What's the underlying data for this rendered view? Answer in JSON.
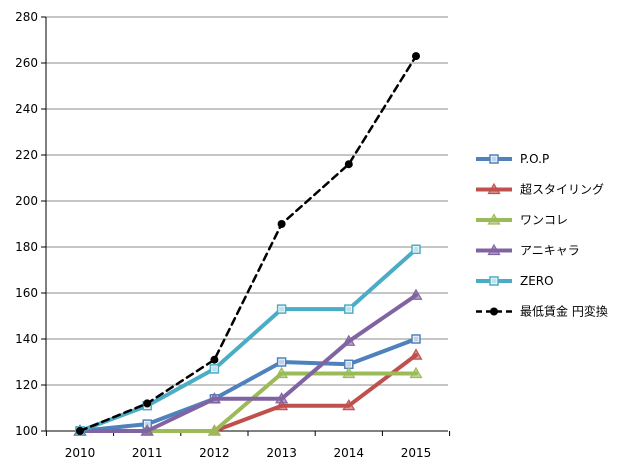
{
  "chart_data": {
    "type": "line",
    "title": "",
    "xlabel": "",
    "ylabel": "",
    "categories": [
      "2010",
      "2011",
      "2012",
      "2013",
      "2014",
      "2015"
    ],
    "ylim": [
      100,
      280
    ],
    "yticks": [
      "100",
      "120",
      "140",
      "160",
      "180",
      "200",
      "220",
      "240",
      "260",
      "280"
    ],
    "grid": true,
    "legend_position": "right",
    "series": [
      {
        "name": "P.O.P",
        "values": [
          100,
          103,
          114,
          130,
          129,
          140
        ],
        "color": "#4f81bd",
        "marker": "square",
        "dash": false
      },
      {
        "name": "超スタイリング",
        "values": [
          100,
          100,
          100,
          111,
          111,
          133
        ],
        "color": "#c0504d",
        "marker": "triangle",
        "dash": false
      },
      {
        "name": "ワンコレ",
        "values": [
          100,
          100,
          100,
          125,
          125,
          125
        ],
        "color": "#9bbb59",
        "marker": "triangle",
        "dash": false
      },
      {
        "name": "アニキャラ",
        "values": [
          100,
          100,
          114,
          114,
          139,
          159
        ],
        "color": "#8064a2",
        "marker": "triangle",
        "dash": false
      },
      {
        "name": "ZERO",
        "values": [
          100,
          111,
          127,
          153,
          153,
          179
        ],
        "color": "#4bacc6",
        "marker": "square",
        "dash": false
      },
      {
        "name": "最低賃金 円変換",
        "values": [
          100,
          112,
          131,
          190,
          216,
          263
        ],
        "color": "#000000",
        "marker": "circle",
        "dash": true
      }
    ]
  }
}
